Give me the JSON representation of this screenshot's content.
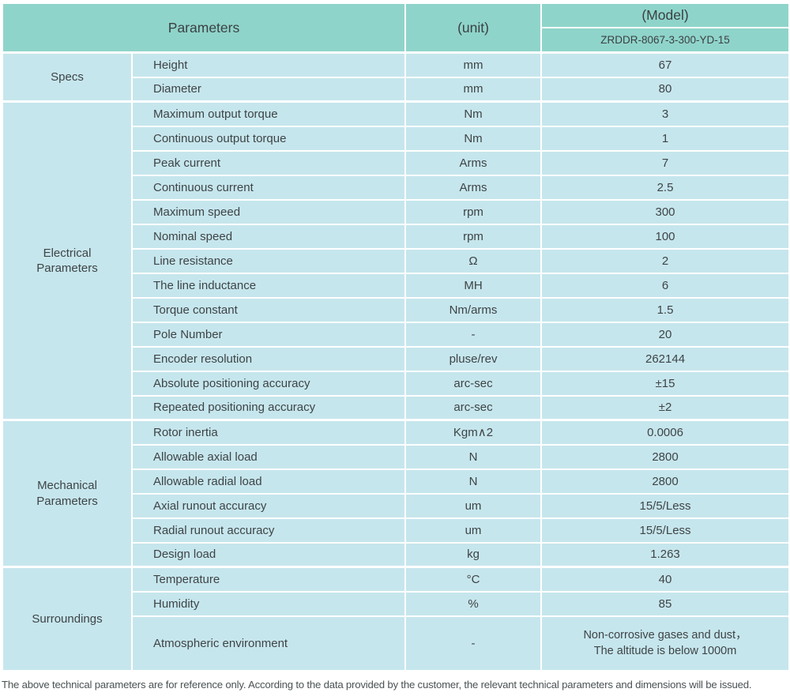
{
  "colors": {
    "header_bg": "#8fd4ca",
    "cell_bg": "#c6e6ed",
    "grid_line": "#ffffff",
    "text": "#3e4446"
  },
  "table": {
    "header": {
      "parameters_label": "Parameters",
      "unit_label": "(unit)",
      "model_label": "(Model)",
      "model_value": "ZRDDR-8067-3-300-YD-15"
    },
    "sections": [
      {
        "name": "Specs",
        "rows": [
          [
            "Height",
            "mm",
            "67"
          ],
          [
            "Diameter",
            "mm",
            "80"
          ]
        ]
      },
      {
        "name": "Electrical Parameters",
        "rows": [
          [
            "Maximum output torque",
            "Nm",
            "3"
          ],
          [
            "Continuous output torque",
            "Nm",
            "1"
          ],
          [
            "Peak current",
            "Arms",
            "7"
          ],
          [
            "Continuous current",
            "Arms",
            "2.5"
          ],
          [
            "Maximum speed",
            "rpm",
            "300"
          ],
          [
            "Nominal speed",
            "rpm",
            "100"
          ],
          [
            "Line resistance",
            "Ω",
            "2"
          ],
          [
            "The line inductance",
            "MH",
            "6"
          ],
          [
            "Torque constant",
            "Nm/arms",
            "1.5"
          ],
          [
            "Pole Number",
            "-",
            "20"
          ],
          [
            "Encoder resolution",
            "pluse/rev",
            "262144"
          ],
          [
            "Absolute positioning accuracy",
            "arc-sec",
            "±15"
          ],
          [
            "Repeated positioning accuracy",
            "arc-sec",
            "±2"
          ]
        ]
      },
      {
        "name": "Mechanical Parameters",
        "rows": [
          [
            "Rotor inertia",
            "Kgm∧2",
            "0.0006"
          ],
          [
            "Allowable axial load",
            "N",
            "2800"
          ],
          [
            "Allowable radial load",
            "N",
            "2800"
          ],
          [
            "Axial runout accuracy",
            "um",
            "15/5/Less"
          ],
          [
            "Radial runout accuracy",
            "um",
            "15/5/Less"
          ],
          [
            "Design load",
            "kg",
            "1.263"
          ]
        ]
      },
      {
        "name": "Surroundings",
        "rows": [
          [
            "Temperature",
            "°C",
            "40"
          ],
          [
            "Humidity",
            "%",
            "85"
          ],
          [
            "Atmospheric environment",
            "-",
            "Non-corrosive gases and dust，\nThe altitude is below 1000m"
          ]
        ]
      }
    ],
    "footnote": "The above technical parameters are for reference only. According to the data provided by the customer, the relevant technical parameters and dimensions will be issued."
  }
}
